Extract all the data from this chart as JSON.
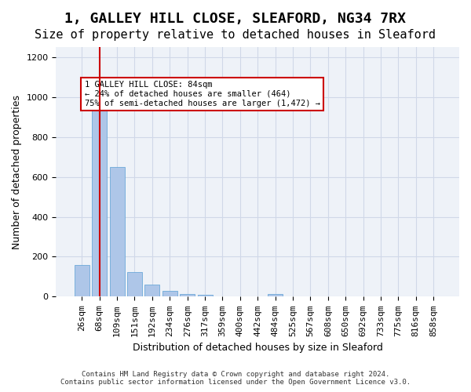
{
  "title1": "1, GALLEY HILL CLOSE, SLEAFORD, NG34 7RX",
  "title2": "Size of property relative to detached houses in Sleaford",
  "xlabel": "Distribution of detached houses by size in Sleaford",
  "ylabel": "Number of detached properties",
  "footnote1": "Contains HM Land Registry data © Crown copyright and database right 2024.",
  "footnote2": "Contains public sector information licensed under the Open Government Licence v3.0.",
  "categories": [
    "26sqm",
    "68sqm",
    "109sqm",
    "151sqm",
    "192sqm",
    "234sqm",
    "276sqm",
    "317sqm",
    "359sqm",
    "400sqm",
    "442sqm",
    "484sqm",
    "525sqm",
    "567sqm",
    "608sqm",
    "650sqm",
    "692sqm",
    "733sqm",
    "775sqm",
    "816sqm",
    "858sqm"
  ],
  "values": [
    160,
    940,
    650,
    125,
    60,
    30,
    15,
    10,
    0,
    0,
    0,
    15,
    0,
    0,
    0,
    0,
    0,
    0,
    0,
    0,
    0
  ],
  "bar_color": "#aec6e8",
  "bar_edge_color": "#5a9fd4",
  "property_line_x": 84,
  "property_line_color": "#cc0000",
  "annotation_text": "1 GALLEY HILL CLOSE: 84sqm\n← 24% of detached houses are smaller (464)\n75% of semi-detached houses are larger (1,472) →",
  "annotation_box_color": "#cc0000",
  "annotation_bg_color": "#ffffff",
  "ylim": [
    0,
    1250
  ],
  "yticks": [
    0,
    200,
    400,
    600,
    800,
    1000,
    1200
  ],
  "grid_color": "#d0d8e8",
  "bg_color": "#eef2f8",
  "title1_fontsize": 13,
  "title2_fontsize": 11,
  "xlabel_fontsize": 9,
  "ylabel_fontsize": 9,
  "tick_fontsize": 8
}
